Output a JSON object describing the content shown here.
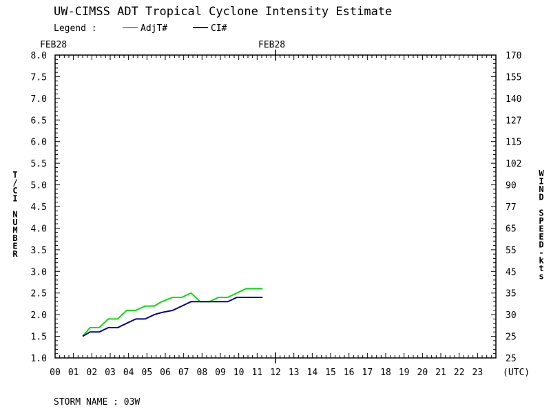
{
  "title": "UW-CIMSS ADT Tropical Cyclone Intensity Estimate",
  "legend_label": "Legend :",
  "legend_items": [
    {
      "name": "AdjT#",
      "color": "#00e000"
    },
    {
      "name": "CI#",
      "color": "#000099"
    }
  ],
  "date_left": "FEB28",
  "date_mid": "FEB28",
  "y_left_label": "T/CI NUMBER",
  "y_right_label": "WIND SPEED-kts",
  "x_unit_label": "(UTC)",
  "footer": "STORM NAME : 03W",
  "chart_data": {
    "type": "line",
    "title": "UW-CIMSS ADT Tropical Cyclone Intensity Estimate",
    "xlabel": "(UTC)",
    "ylabel": "T/CI NUMBER",
    "ylabel_right": "WIND SPEED-kts",
    "xlim": [
      0,
      24
    ],
    "ylim": [
      1.0,
      8.0
    ],
    "x_ticks": [
      "00",
      "01",
      "02",
      "03",
      "04",
      "05",
      "06",
      "07",
      "08",
      "09",
      "10",
      "11",
      "12",
      "13",
      "14",
      "15",
      "16",
      "17",
      "18",
      "19",
      "20",
      "21",
      "22",
      "23"
    ],
    "y_ticks": [
      "1.0",
      "1.5",
      "2.0",
      "2.5",
      "3.0",
      "3.5",
      "4.0",
      "4.5",
      "5.0",
      "5.5",
      "6.0",
      "6.5",
      "7.0",
      "7.5",
      "8.0"
    ],
    "y_right_ticks": [
      "25",
      "25",
      "30",
      "35",
      "45",
      "55",
      "65",
      "77",
      "90",
      "102",
      "115",
      "127",
      "140",
      "155",
      "170"
    ],
    "grid": false,
    "legend": "top",
    "series": [
      {
        "name": "AdjT#",
        "color": "#00e000",
        "x": [
          1.5,
          1.9,
          2.4,
          2.9,
          3.4,
          3.9,
          4.4,
          4.9,
          5.4,
          5.8,
          6.4,
          6.9,
          7.4,
          7.9,
          8.4,
          8.9,
          9.4,
          9.9,
          10.4,
          10.9,
          11.3
        ],
        "y": [
          1.5,
          1.7,
          1.7,
          1.9,
          1.9,
          2.1,
          2.1,
          2.2,
          2.2,
          2.3,
          2.4,
          2.4,
          2.5,
          2.3,
          2.3,
          2.4,
          2.4,
          2.5,
          2.6,
          2.6,
          2.6
        ]
      },
      {
        "name": "CI#",
        "color": "#000099",
        "x": [
          1.5,
          1.9,
          2.4,
          2.9,
          3.4,
          3.9,
          4.4,
          4.9,
          5.4,
          5.8,
          6.4,
          6.9,
          7.4,
          7.9,
          8.4,
          8.9,
          9.4,
          9.9,
          10.4,
          10.9,
          11.3
        ],
        "y": [
          1.5,
          1.6,
          1.6,
          1.7,
          1.7,
          1.8,
          1.9,
          1.9,
          2.0,
          2.05,
          2.1,
          2.2,
          2.3,
          2.3,
          2.3,
          2.3,
          2.3,
          2.4,
          2.4,
          2.4,
          2.4
        ]
      }
    ]
  }
}
